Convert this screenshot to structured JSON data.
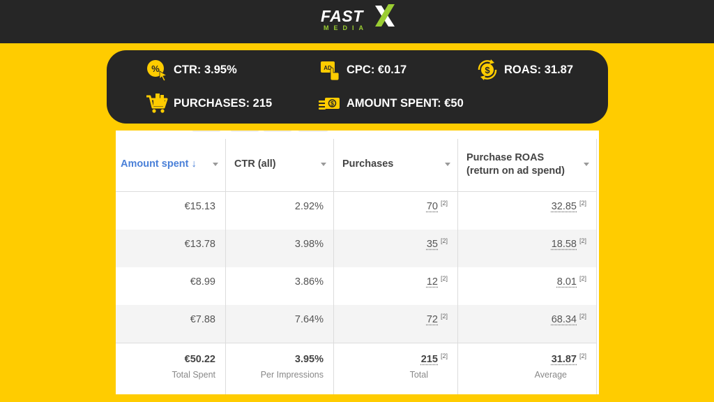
{
  "brand": {
    "word": "FAST",
    "sub": "MEDIA"
  },
  "colors": {
    "background": "#ffcc00",
    "dark": "#262626",
    "accent": "#ffcc00",
    "link": "#4a80d8"
  },
  "metrics": {
    "ctr": "CTR: 3.95%",
    "cpc": "CPC: €0.17",
    "roas": "ROAS: 31.87",
    "purchases": "PURCHASES: 215",
    "amount_spent": "AMOUNT SPENT: €50"
  },
  "icons": [
    "percent-icon",
    "ad-click-icon",
    "money-cycle-icon",
    "shopping-cart-icon",
    "cash-icon"
  ],
  "table": {
    "headers": [
      "Amount spent ↓",
      "CTR (all)",
      "Purchases",
      "Purchase ROAS",
      "(return on ad spend)"
    ],
    "rows": [
      {
        "amount": "€15.13",
        "ctr": "2.92%",
        "purchases": "70",
        "roas": "32.85"
      },
      {
        "amount": "€13.78",
        "ctr": "3.98%",
        "purchases": "35",
        "roas": "18.58"
      },
      {
        "amount": "€8.99",
        "ctr": "3.86%",
        "purchases": "12",
        "roas": "8.01"
      },
      {
        "amount": "€7.88",
        "ctr": "7.64%",
        "purchases": "72",
        "roas": "68.34"
      }
    ],
    "note_marker": "[2]",
    "footer": {
      "amount": "€50.22",
      "amount_label": "Total Spent",
      "ctr": "3.95%",
      "ctr_label": "Per Impressions",
      "purchases": "215",
      "purchases_label": "Total",
      "roas": "31.87",
      "roas_label": "Average"
    }
  }
}
